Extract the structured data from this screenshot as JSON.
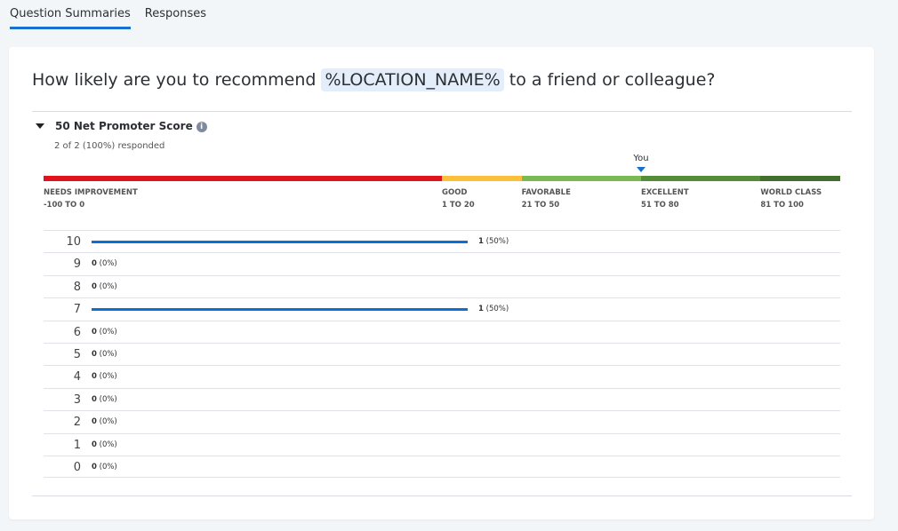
{
  "tabs": [
    {
      "label": "Question Summaries",
      "active": true
    },
    {
      "label": "Responses",
      "active": false
    }
  ],
  "question": {
    "before": "How likely are you to recommend ",
    "token": "%LOCATION_NAME%",
    "after": " to a friend or colleague?"
  },
  "nps": {
    "title": "50 Net Promoter Score",
    "info_icon": "info-icon",
    "info_glyph": "i",
    "responded": "2 of 2 (100%) responded",
    "you_label": "You",
    "score": 50
  },
  "bands": [
    {
      "name": "NEEDS IMPROVEMENT",
      "range": "-100 TO 0",
      "from": -100,
      "to": 0,
      "color": "#e0131d"
    },
    {
      "name": "GOOD",
      "range": "1 TO 20",
      "from": 0,
      "to": 20,
      "color": "#fbbf3a"
    },
    {
      "name": "FAVORABLE",
      "range": "21 TO 50",
      "from": 20,
      "to": 50,
      "color": "#7ab954"
    },
    {
      "name": "EXCELLENT",
      "range": "51 TO 80",
      "from": 50,
      "to": 80,
      "color": "#568c39"
    },
    {
      "name": "WORLD CLASS",
      "range": "81 TO 100",
      "from": 80,
      "to": 100,
      "color": "#426f2e"
    }
  ],
  "chart_data": {
    "type": "bar",
    "orientation": "horizontal",
    "categories": [
      "10",
      "9",
      "8",
      "7",
      "6",
      "5",
      "4",
      "3",
      "2",
      "1",
      "0"
    ],
    "counts": [
      1,
      0,
      0,
      1,
      0,
      0,
      0,
      0,
      0,
      0,
      0
    ],
    "percents": [
      50,
      0,
      0,
      50,
      0,
      0,
      0,
      0,
      0,
      0,
      0
    ],
    "labels": [
      "1",
      "0",
      "0",
      "1",
      "0",
      "0",
      "0",
      "0",
      "0",
      "0",
      "0"
    ],
    "percent_labels": [
      "(50%)",
      "(0%)",
      "(0%)",
      "(50%)",
      "(0%)",
      "(0%)",
      "(0%)",
      "(0%)",
      "(0%)",
      "(0%)",
      "(0%)"
    ],
    "bar_color": "#0b6fd4"
  }
}
